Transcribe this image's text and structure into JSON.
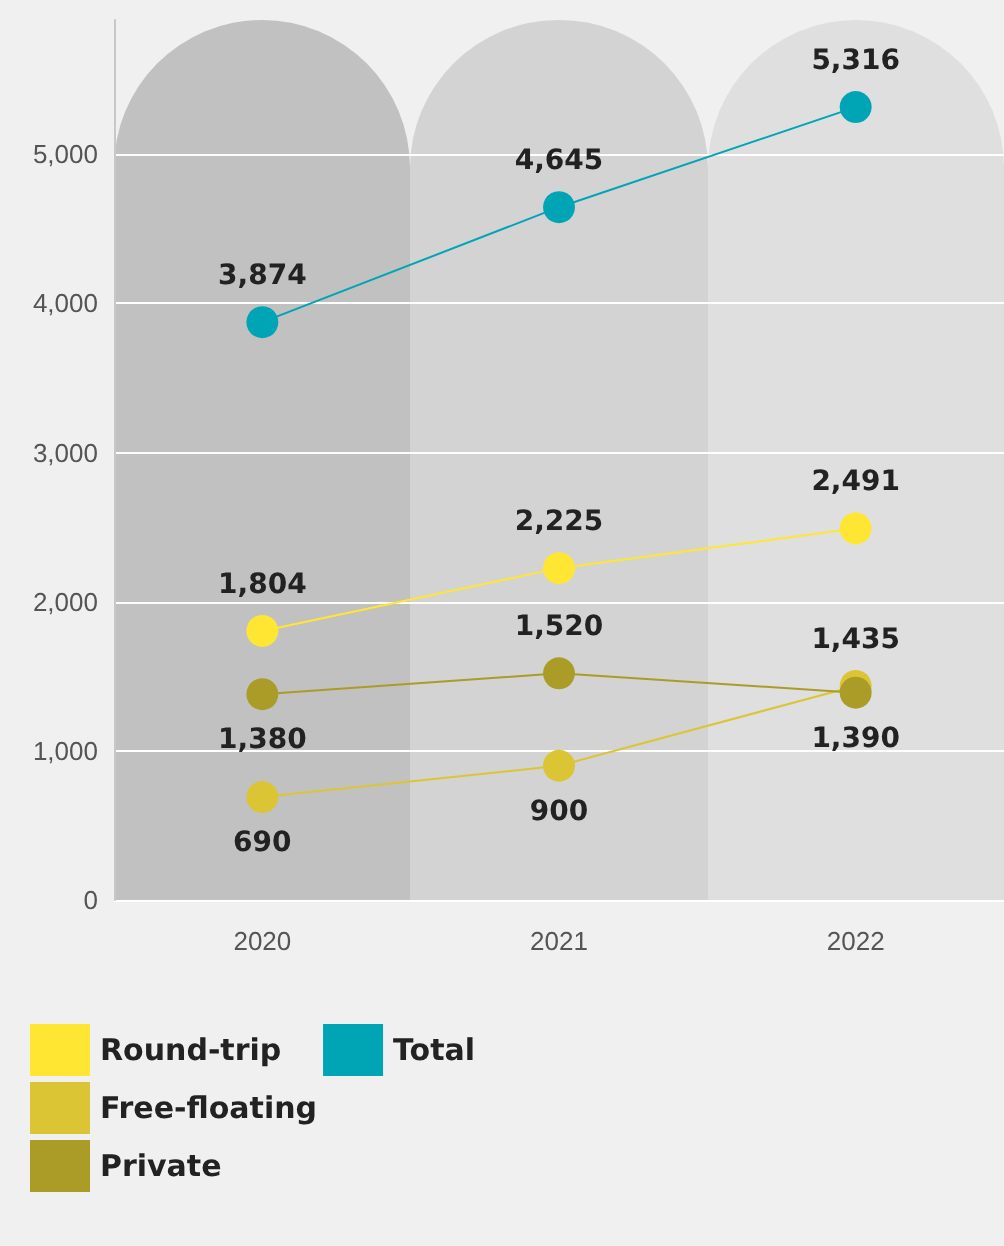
{
  "chart_data": {
    "type": "line",
    "categories": [
      "2020",
      "2021",
      "2022"
    ],
    "series": [
      {
        "name": "Round-trip",
        "color": "#ffe633",
        "values": [
          1804,
          2225,
          2491
        ],
        "value_labels": [
          "1,804",
          "2,225",
          "2,491"
        ]
      },
      {
        "name": "Free-floating",
        "color": "#dcc535",
        "values": [
          690,
          900,
          1435
        ],
        "value_labels": [
          "690",
          "900",
          "1,435"
        ]
      },
      {
        "name": "Private",
        "color": "#ab9c27",
        "values": [
          1380,
          1520,
          1390
        ],
        "value_labels": [
          "1,380",
          "1,520",
          "1,390"
        ]
      },
      {
        "name": "Total",
        "color": "#00a5b5",
        "values": [
          3874,
          4645,
          5316
        ],
        "value_labels": [
          "3,874",
          "4,645",
          "5,316"
        ]
      }
    ],
    "bands": [
      {
        "axis": "x",
        "from": "2020",
        "to": "2020",
        "color": "#c1c1c1"
      },
      {
        "axis": "x",
        "from": "2021",
        "to": "2021",
        "color": "#d3d3d3"
      },
      {
        "axis": "x",
        "from": "2022",
        "to": "2022",
        "color": "#dfdfdf"
      }
    ],
    "ylim": [
      0,
      5900
    ],
    "yticks": [
      0,
      {
        "value": 1000,
        "label": "1,000"
      },
      {
        "value": 2000,
        "label": "2,000"
      },
      {
        "value": 3000,
        "label": "3,000"
      },
      {
        "value": 4000,
        "label": "4,000"
      },
      {
        "value": 5000,
        "label": "5,000"
      }
    ],
    "grid": "y",
    "legend": "bottom left",
    "marker": "circle"
  }
}
